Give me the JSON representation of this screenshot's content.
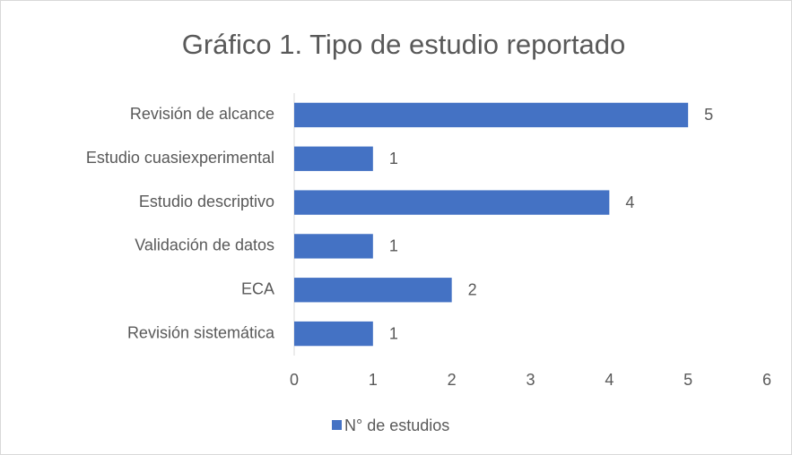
{
  "chart_data": {
    "type": "hbar",
    "title": "Gráfico 1. Tipo de estudio reportado",
    "categories": [
      "Revisión de alcance",
      "Estudio cuasiexperimental",
      "Estudio descriptivo",
      "Validación de datos",
      "ECA",
      "Revisión sistemática"
    ],
    "series": [
      {
        "name": "N° de estudios",
        "color": "#4472c4",
        "values": [
          5,
          1,
          4,
          1,
          2,
          1
        ]
      }
    ],
    "xlim": [
      0,
      6
    ],
    "xticks": [
      0,
      1,
      2,
      3,
      4,
      5,
      6
    ],
    "grid": false,
    "legend": "bottom"
  }
}
